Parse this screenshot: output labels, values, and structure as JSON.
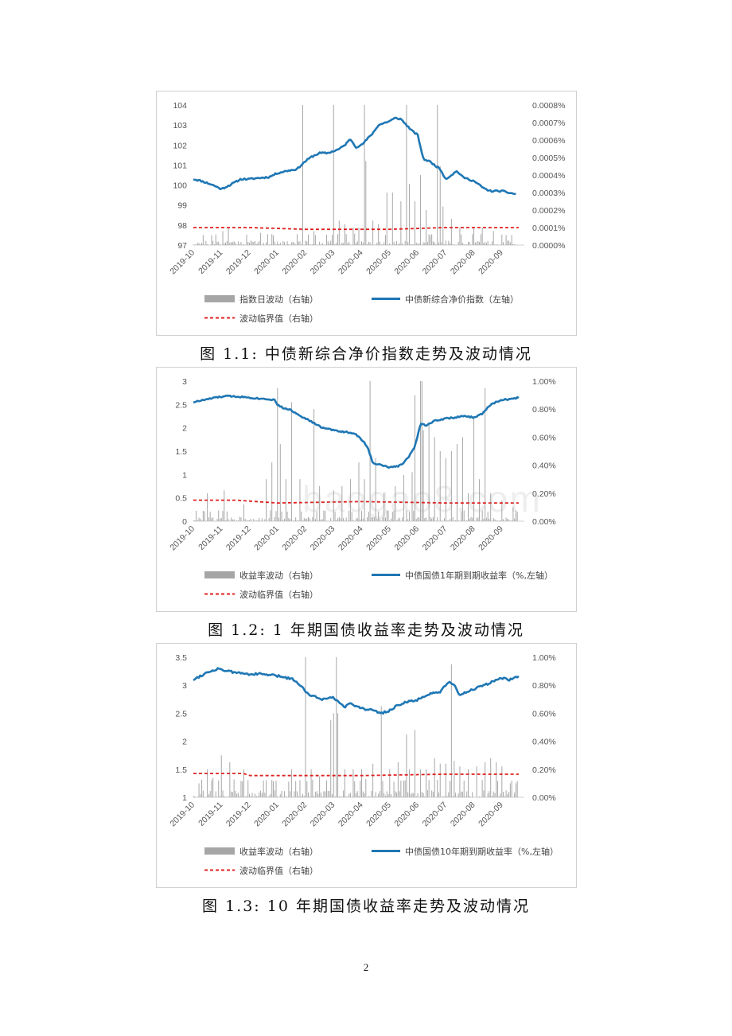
{
  "page_number": "2",
  "watermark": "baogao8.com",
  "chart_data": [
    {
      "type": "bar+line",
      "caption": "图 1.1: 中债新综合净价指数走势及波动情况",
      "x_labels": [
        "2019-10",
        "2019-11",
        "2019-12",
        "2020-01",
        "2020-02",
        "2020-03",
        "2020-04",
        "2020-05",
        "2020-06",
        "2020-07",
        "2020-08",
        "2020-09"
      ],
      "left_axis": {
        "ticks": [
          "104",
          "103",
          "102",
          "101",
          "100",
          "99",
          "98",
          "97"
        ],
        "min": 97,
        "max": 104
      },
      "right_axis": {
        "ticks": [
          "0.0008%",
          "0.0007%",
          "0.0006%",
          "0.0005%",
          "0.0004%",
          "0.0003%",
          "0.0002%",
          "0.0001%",
          "0.0000%"
        ],
        "min": 0,
        "max": 0.0008
      },
      "legend": {
        "bar": "指数日波动（右轴）",
        "line": "中债新综合净价指数（左轴）",
        "threshold": "波动临界值（右轴）"
      },
      "colors": {
        "bar": "#a6a6a6",
        "line": "#1f77b4",
        "threshold": "#e02020"
      },
      "line_series": {
        "anchors_x": [
          0,
          0.3,
          0.7,
          1,
          1.3,
          1.7,
          2,
          2.3,
          2.7,
          3,
          3.3,
          3.7,
          4,
          4.2,
          4.5,
          4.8,
          5,
          5.2,
          5.4,
          5.6,
          5.8,
          6,
          6.2,
          6.4,
          6.6,
          6.8,
          7,
          7.2,
          7.4,
          7.6,
          7.8,
          8,
          8.2,
          8.4,
          8.6,
          8.8,
          9,
          9.2,
          9.4,
          9.6,
          9.8,
          10,
          10.2,
          10.4,
          10.6,
          10.8,
          11,
          11.3,
          11.5
        ],
        "anchors_y": [
          100.3,
          100.2,
          100.0,
          99.8,
          100.0,
          100.3,
          100.3,
          100.35,
          100.4,
          100.6,
          100.7,
          100.8,
          101.2,
          101.4,
          101.6,
          101.6,
          101.7,
          101.8,
          102.0,
          102.3,
          101.9,
          102.0,
          102.3,
          102.6,
          103.0,
          103.1,
          103.2,
          103.35,
          103.3,
          103.0,
          102.7,
          102.5,
          101.3,
          101.2,
          101.0,
          100.8,
          100.3,
          100.5,
          100.7,
          100.4,
          100.3,
          100.2,
          100.0,
          99.8,
          99.7,
          99.7,
          99.7,
          99.6,
          99.55
        ],
        "noise": 0.04,
        "seed": 11
      },
      "threshold_series": {
        "x": [
          0,
          2,
          4,
          7,
          9,
          11.6
        ],
        "y": [
          0.0001,
          0.0001,
          9e-05,
          9e-05,
          0.0001,
          0.0001
        ]
      },
      "bar_series": {
        "base_level": 2.5e-05,
        "spikes": [
          [
            1.05,
            8e-05
          ],
          [
            1.25,
            0.0001
          ],
          [
            1.9,
            6e-05
          ],
          [
            2.4,
            7e-05
          ],
          [
            3.9,
            0.0008
          ],
          [
            4.1,
            6e-05
          ],
          [
            4.3,
            8e-05
          ],
          [
            5.0,
            0.0008
          ],
          [
            5.2,
            0.00014
          ],
          [
            5.4,
            0.00012
          ],
          [
            5.7,
            0.0001
          ],
          [
            5.9,
            0.0001
          ],
          [
            6.1,
            0.0008
          ],
          [
            6.15,
            0.00048
          ],
          [
            6.4,
            0.00014
          ],
          [
            6.6,
            0.00012
          ],
          [
            6.9,
            0.0003
          ],
          [
            7.1,
            0.0003
          ],
          [
            7.4,
            0.00025
          ],
          [
            7.6,
            0.0008
          ],
          [
            7.7,
            0.00035
          ],
          [
            7.9,
            0.00025
          ],
          [
            8.1,
            0.0004
          ],
          [
            8.3,
            0.0002
          ],
          [
            8.7,
            0.0008
          ],
          [
            8.8,
            0.00045
          ],
          [
            8.9,
            0.00022
          ],
          [
            9.2,
            0.00015
          ],
          [
            9.5,
            0.0001
          ],
          [
            10.0,
            0.0001
          ],
          [
            10.3,
            0.0001
          ],
          [
            10.7,
            8e-05
          ]
        ],
        "seed": 21
      }
    },
    {
      "type": "bar+line",
      "caption": "图 1.2: 1 年期国债收益率走势及波动情况",
      "x_labels": [
        "2019-10",
        "2019-11",
        "2019-12",
        "2020-01",
        "2020-02",
        "2020-03",
        "2020-04",
        "2020-05",
        "2020-06",
        "2020-07",
        "2020-08",
        "2020-09"
      ],
      "left_axis": {
        "ticks": [
          "3",
          "2.5",
          "2",
          "1.5",
          "1",
          "0.5",
          "0"
        ],
        "min": 0,
        "max": 3
      },
      "right_axis": {
        "ticks": [
          "1.00%",
          "0.80%",
          "0.60%",
          "0.40%",
          "0.20%",
          "0.00%"
        ],
        "min": 0,
        "max": 1.0
      },
      "legend": {
        "bar": "收益率波动（右轴）",
        "line": "中债国债1年期到期收益率（%,左轴）",
        "threshold": "波动临界值（右轴）"
      },
      "colors": {
        "bar": "#a6a6a6",
        "line": "#1f77b4",
        "threshold": "#e02020"
      },
      "line_series": {
        "anchors_x": [
          0,
          0.4,
          0.8,
          1.2,
          1.6,
          2,
          2.3,
          2.6,
          2.9,
          3.0,
          3.2,
          3.4,
          3.7,
          4.0,
          4.3,
          4.6,
          5.0,
          5.3,
          5.6,
          5.8,
          6.0,
          6.2,
          6.4,
          6.7,
          7.0,
          7.3,
          7.5,
          7.7,
          7.9,
          8.1,
          8.3,
          8.6,
          9.0,
          9.3,
          9.7,
          10.0,
          10.3,
          10.6,
          11.0,
          11.4,
          11.6
        ],
        "anchors_y": [
          2.55,
          2.6,
          2.65,
          2.68,
          2.67,
          2.65,
          2.63,
          2.62,
          2.6,
          2.5,
          2.42,
          2.4,
          2.3,
          2.2,
          2.1,
          2.0,
          1.95,
          1.92,
          1.9,
          1.85,
          1.75,
          1.6,
          1.25,
          1.2,
          1.15,
          1.18,
          1.25,
          1.4,
          1.6,
          2.1,
          2.05,
          2.15,
          2.2,
          2.22,
          2.25,
          2.22,
          2.3,
          2.5,
          2.6,
          2.62,
          2.65
        ],
        "noise": 0.015,
        "seed": 33
      },
      "threshold_series": {
        "x": [
          0,
          1.5,
          3,
          6,
          9,
          11.6
        ],
        "y": [
          0.15,
          0.15,
          0.13,
          0.14,
          0.13,
          0.13
        ]
      },
      "bar_series": {
        "base_level": 0.03,
        "spikes": [
          [
            0.5,
            0.2
          ],
          [
            1.1,
            0.22
          ],
          [
            1.8,
            0.12
          ],
          [
            2.6,
            0.3
          ],
          [
            2.8,
            0.42
          ],
          [
            3.0,
            0.95
          ],
          [
            3.1,
            0.55
          ],
          [
            3.3,
            0.3
          ],
          [
            3.5,
            0.85
          ],
          [
            3.8,
            0.3
          ],
          [
            4.3,
            0.8
          ],
          [
            4.5,
            0.25
          ],
          [
            5.0,
            0.22
          ],
          [
            5.3,
            0.25
          ],
          [
            5.6,
            0.3
          ],
          [
            5.9,
            0.42
          ],
          [
            6.1,
            0.3
          ],
          [
            6.3,
            1.0
          ],
          [
            6.5,
            0.45
          ],
          [
            6.8,
            0.2
          ],
          [
            7.2,
            0.25
          ],
          [
            7.5,
            0.33
          ],
          [
            7.8,
            0.35
          ],
          [
            7.9,
            0.9
          ],
          [
            8.1,
            1.0
          ],
          [
            8.15,
            1.0
          ],
          [
            8.2,
            0.65
          ],
          [
            8.4,
            0.7
          ],
          [
            8.6,
            0.6
          ],
          [
            8.8,
            0.5
          ],
          [
            9.0,
            0.45
          ],
          [
            9.2,
            0.5
          ],
          [
            9.4,
            0.55
          ],
          [
            9.6,
            0.6
          ],
          [
            9.8,
            0.2
          ],
          [
            10.0,
            0.75
          ],
          [
            10.2,
            0.3
          ],
          [
            10.4,
            0.95
          ],
          [
            10.6,
            0.2
          ],
          [
            11.0,
            0.15
          ],
          [
            11.4,
            0.1
          ]
        ],
        "seed": 44
      }
    },
    {
      "type": "bar+line",
      "caption": "图 1.3: 10 年期国债收益率走势及波动情况",
      "x_labels": [
        "2019-10",
        "2019-11",
        "2019-12",
        "2020-01",
        "2020-02",
        "2020-03",
        "2020-04",
        "2020-05",
        "2020-06",
        "2020-07",
        "2020-08",
        "2020-09"
      ],
      "left_axis": {
        "ticks": [
          "3.5",
          "3",
          "2.5",
          "2",
          "1.5",
          "1"
        ],
        "min": 1,
        "max": 3.5
      },
      "right_axis": {
        "ticks": [
          "1.00%",
          "0.80%",
          "0.60%",
          "0.40%",
          "0.20%",
          "0.00%"
        ],
        "min": 0,
        "max": 1.0
      },
      "legend": {
        "bar": "收益率波动（右轴）",
        "line": "中债国债10年期到期收益率（%,左轴）",
        "threshold": "波动临界值（右轴）"
      },
      "colors": {
        "bar": "#a6a6a6",
        "line": "#1f77b4",
        "threshold": "#e02020"
      },
      "line_series": {
        "anchors_x": [
          0,
          0.3,
          0.6,
          0.9,
          1.2,
          1.6,
          2,
          2.4,
          2.8,
          3.2,
          3.6,
          3.9,
          4.1,
          4.3,
          4.6,
          4.9,
          5.2,
          5.4,
          5.6,
          5.8,
          6.1,
          6.4,
          6.7,
          7.0,
          7.3,
          7.6,
          7.9,
          8.2,
          8.5,
          8.8,
          9.1,
          9.3,
          9.5,
          9.8,
          10.1,
          10.4,
          10.7,
          11.0,
          11.3,
          11.6
        ],
        "anchors_y": [
          3.1,
          3.18,
          3.25,
          3.3,
          3.25,
          3.22,
          3.2,
          3.2,
          3.18,
          3.15,
          3.1,
          2.95,
          2.85,
          2.8,
          2.75,
          2.8,
          2.7,
          2.6,
          2.7,
          2.62,
          2.58,
          2.55,
          2.5,
          2.55,
          2.65,
          2.7,
          2.72,
          2.8,
          2.85,
          2.88,
          3.05,
          3.0,
          2.82,
          2.9,
          2.95,
          3.0,
          3.08,
          3.12,
          3.1,
          3.15
        ],
        "noise": 0.02,
        "seed": 55
      },
      "threshold_series": {
        "x": [
          0,
          1.8,
          2.0,
          6,
          9,
          11.6
        ],
        "y": [
          0.17,
          0.17,
          0.155,
          0.155,
          0.165,
          0.165
        ]
      },
      "bar_series": {
        "base_level": 0.05,
        "spikes": [
          [
            0.2,
            0.1
          ],
          [
            0.5,
            0.2
          ],
          [
            0.7,
            0.14
          ],
          [
            0.9,
            0.12
          ],
          [
            1.0,
            0.3
          ],
          [
            1.3,
            0.25
          ],
          [
            1.8,
            0.2
          ],
          [
            2.5,
            0.12
          ],
          [
            3.5,
            0.2
          ],
          [
            4.0,
            1.0
          ],
          [
            4.2,
            0.2
          ],
          [
            4.5,
            0.15
          ],
          [
            4.9,
            0.55
          ],
          [
            5.0,
            0.6
          ],
          [
            5.1,
            1.0
          ],
          [
            5.15,
            0.6
          ],
          [
            5.4,
            0.2
          ],
          [
            5.7,
            0.2
          ],
          [
            6.0,
            0.2
          ],
          [
            6.4,
            0.24
          ],
          [
            6.7,
            0.65
          ],
          [
            7.0,
            0.2
          ],
          [
            7.3,
            0.25
          ],
          [
            7.6,
            0.45
          ],
          [
            7.7,
            0.2
          ],
          [
            7.9,
            0.48
          ],
          [
            8.1,
            0.2
          ],
          [
            8.3,
            0.2
          ],
          [
            8.6,
            0.28
          ],
          [
            8.8,
            0.24
          ],
          [
            9.0,
            0.24
          ],
          [
            9.2,
            0.95
          ],
          [
            9.3,
            0.26
          ],
          [
            9.5,
            0.22
          ],
          [
            9.8,
            0.2
          ],
          [
            10.1,
            0.22
          ],
          [
            10.4,
            0.25
          ],
          [
            10.6,
            0.28
          ],
          [
            10.8,
            0.25
          ],
          [
            11.0,
            0.22
          ],
          [
            11.3,
            0.1
          ],
          [
            11.5,
            0.1
          ]
        ],
        "seed": 66
      }
    }
  ]
}
